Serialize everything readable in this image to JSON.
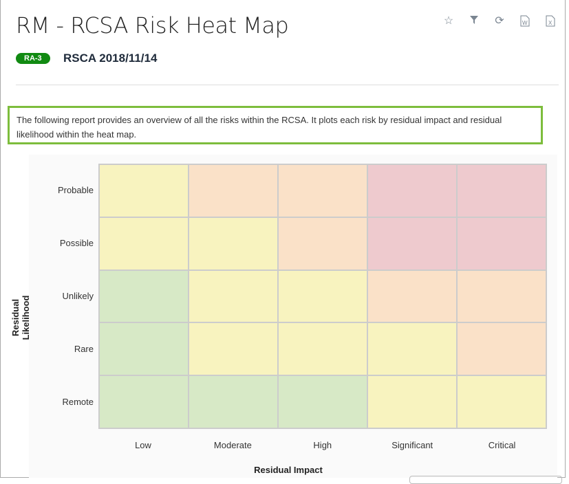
{
  "header": {
    "title": "RM - RCSA Risk Heat Map",
    "badge": "RA-3",
    "subtitle": "RSCA 2018/11/14"
  },
  "toolbar": [
    "star-icon",
    "filter-icon",
    "refresh-icon",
    "word-export-icon",
    "excel-export-icon"
  ],
  "description": "The following report provides an overview of all the risks within the RCSA. It plots each risk by residual impact and residual likelihood within the heat map.",
  "colors": {
    "low": "#d7e9c6",
    "medium": "#f8f3bf",
    "high": "#fae1c8",
    "critical": "#eecace",
    "badge": "#118a12",
    "highlight": "#7dbd3c"
  },
  "chart_data": {
    "type": "heatmap",
    "xlabel": "Residual Impact",
    "ylabel": "Residual Likelihood",
    "x_categories": [
      "Low",
      "Moderate",
      "High",
      "Significant",
      "Critical"
    ],
    "y_categories": [
      "Probable",
      "Possible",
      "Unlikely",
      "Rare",
      "Remote"
    ],
    "levels": [
      [
        "medium",
        "high",
        "high",
        "critical",
        "critical"
      ],
      [
        "medium",
        "medium",
        "high",
        "critical",
        "critical"
      ],
      [
        "low",
        "medium",
        "medium",
        "high",
        "high"
      ],
      [
        "low",
        "medium",
        "medium",
        "medium",
        "high"
      ],
      [
        "low",
        "low",
        "low",
        "medium",
        "medium"
      ]
    ]
  }
}
